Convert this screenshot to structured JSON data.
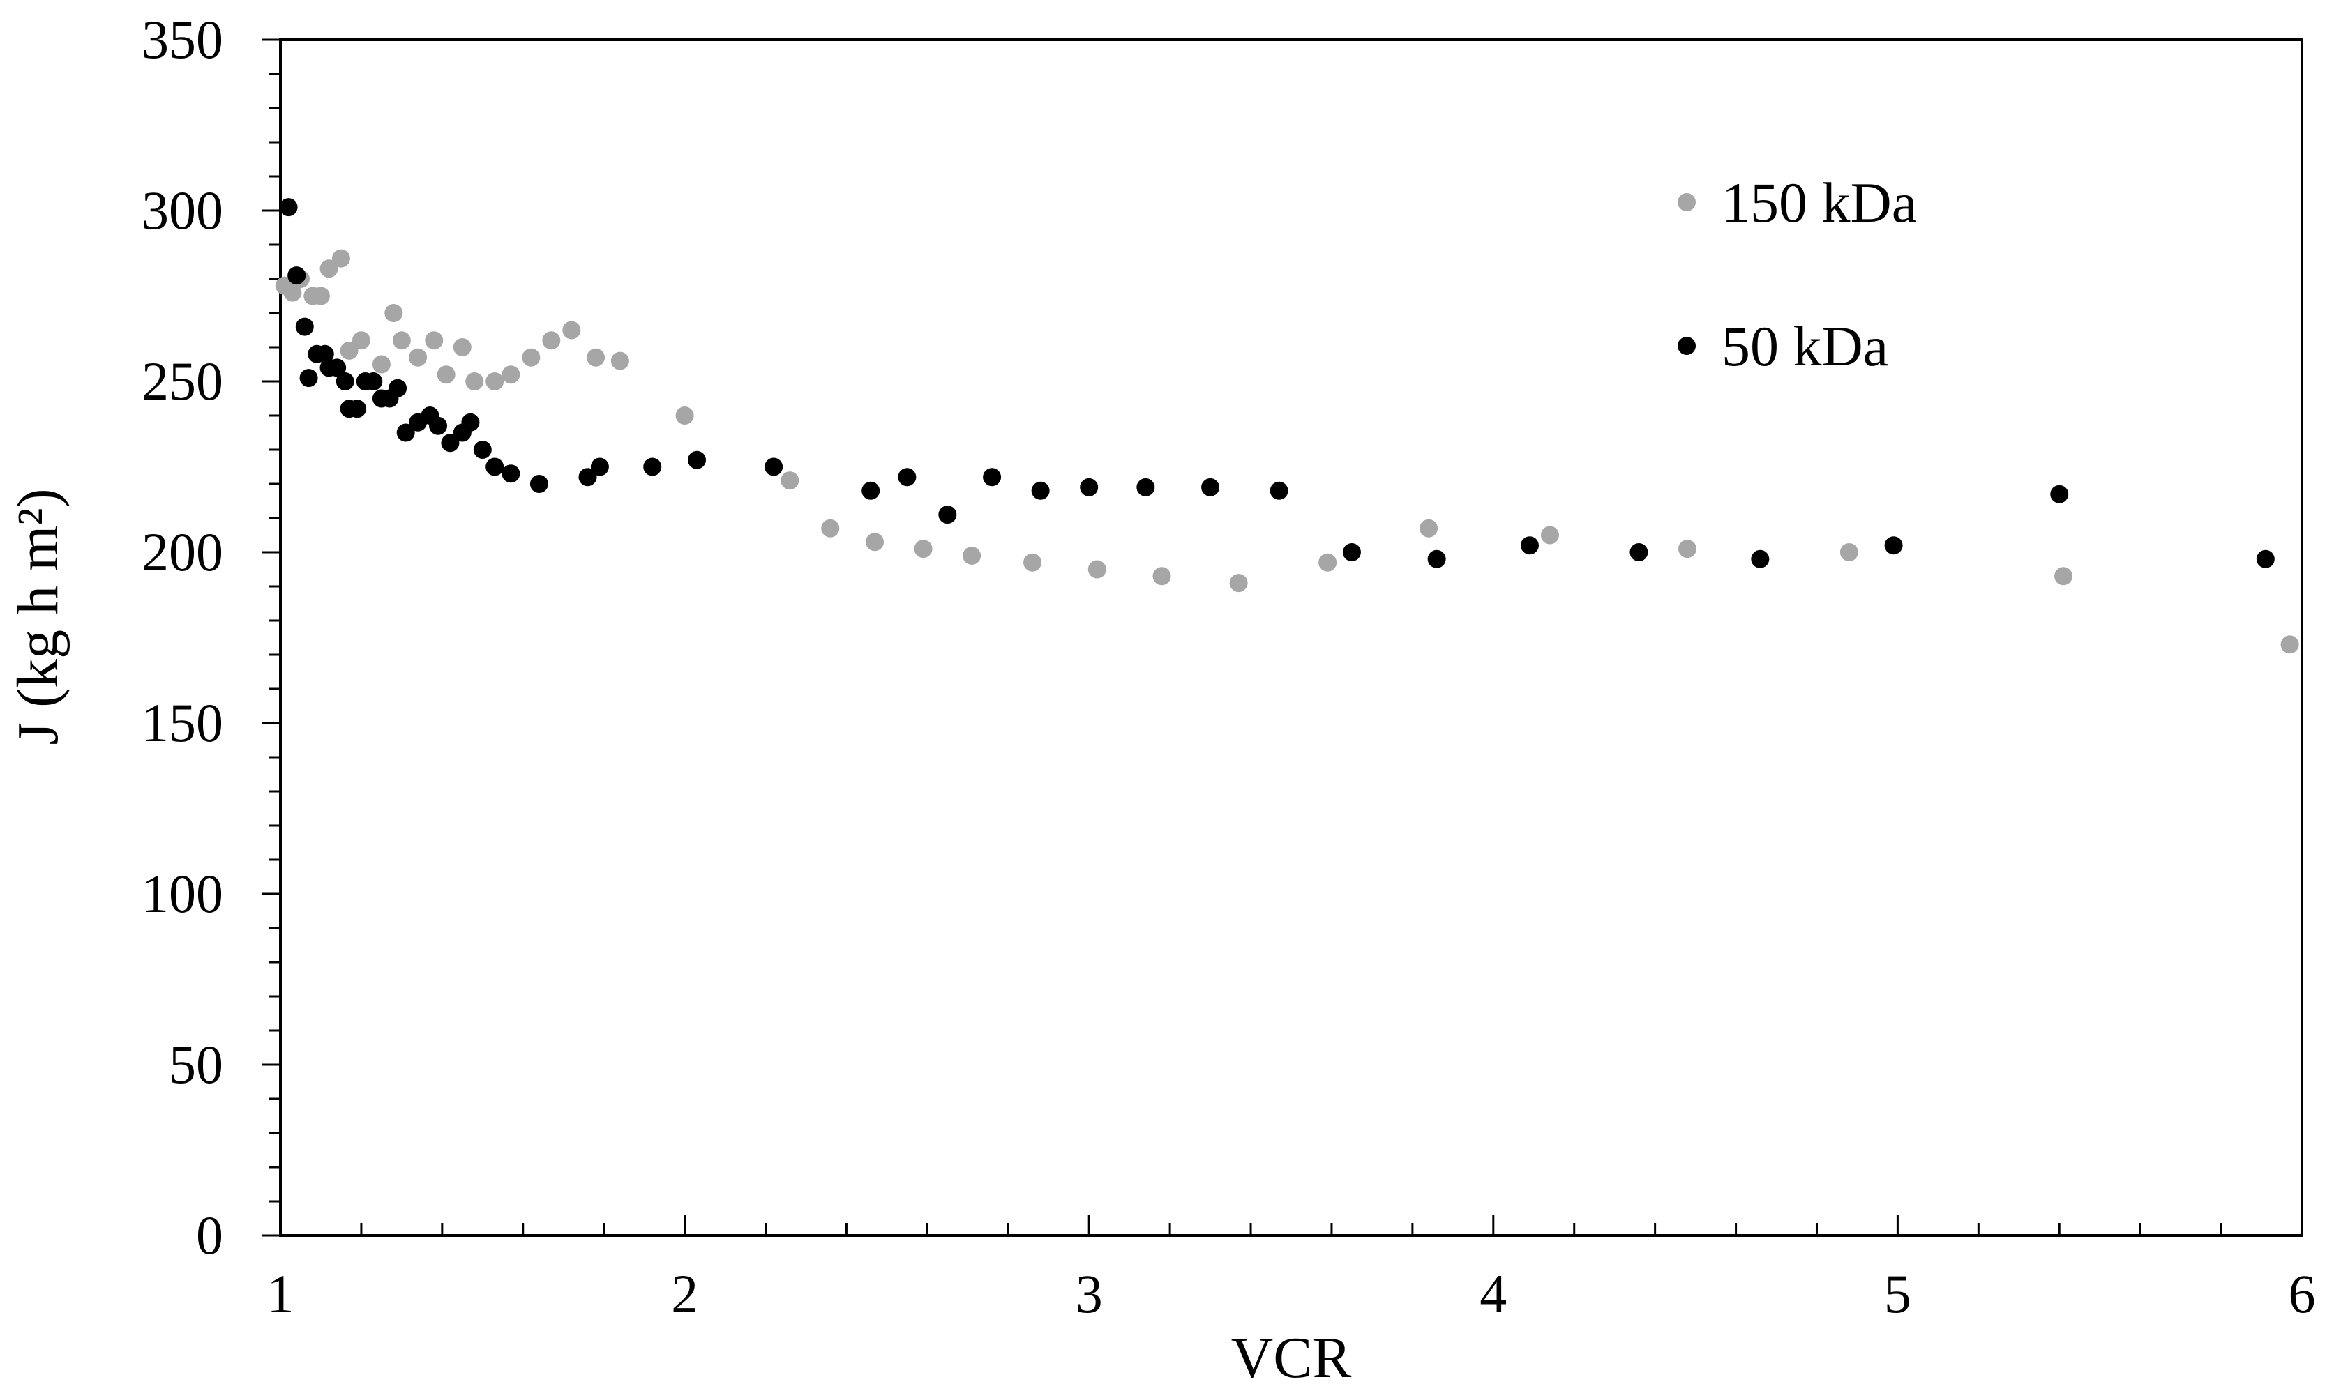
{
  "chart_data": {
    "type": "scatter",
    "title": "",
    "xlabel": "VCR",
    "ylabel": "J (kg h m²)",
    "xlim": [
      1,
      6
    ],
    "ylim": [
      0,
      350
    ],
    "x_ticks": [
      "1",
      "2",
      "3",
      "4",
      "5",
      "6"
    ],
    "y_ticks": [
      "0",
      "50",
      "100",
      "150",
      "200",
      "250",
      "300",
      "350"
    ],
    "grid": false,
    "legend_position": "top-right",
    "series": [
      {
        "name": "150 kDa",
        "color": "#a6a6a6",
        "points": [
          [
            1.01,
            278
          ],
          [
            1.03,
            276
          ],
          [
            1.05,
            280
          ],
          [
            1.08,
            275
          ],
          [
            1.1,
            275
          ],
          [
            1.12,
            283
          ],
          [
            1.15,
            286
          ],
          [
            1.17,
            259
          ],
          [
            1.2,
            262
          ],
          [
            1.25,
            255
          ],
          [
            1.28,
            270
          ],
          [
            1.3,
            262
          ],
          [
            1.34,
            257
          ],
          [
            1.38,
            262
          ],
          [
            1.41,
            252
          ],
          [
            1.45,
            260
          ],
          [
            1.48,
            250
          ],
          [
            1.53,
            250
          ],
          [
            1.57,
            252
          ],
          [
            1.62,
            257
          ],
          [
            1.67,
            262
          ],
          [
            1.72,
            265
          ],
          [
            1.78,
            257
          ],
          [
            1.84,
            256
          ],
          [
            2.0,
            240
          ],
          [
            2.26,
            221
          ],
          [
            2.36,
            207
          ],
          [
            2.47,
            203
          ],
          [
            2.59,
            201
          ],
          [
            2.71,
            199
          ],
          [
            2.86,
            197
          ],
          [
            3.02,
            195
          ],
          [
            3.18,
            193
          ],
          [
            3.37,
            191
          ],
          [
            3.59,
            197
          ],
          [
            3.84,
            207
          ],
          [
            4.14,
            205
          ],
          [
            4.48,
            201
          ],
          [
            4.88,
            200
          ],
          [
            5.41,
            193
          ],
          [
            5.97,
            173
          ]
        ]
      },
      {
        "name": "50 kDa",
        "color": "#000000",
        "points": [
          [
            1.02,
            301
          ],
          [
            1.04,
            281
          ],
          [
            1.06,
            266
          ],
          [
            1.07,
            251
          ],
          [
            1.09,
            258
          ],
          [
            1.11,
            258
          ],
          [
            1.12,
            254
          ],
          [
            1.14,
            254
          ],
          [
            1.16,
            250
          ],
          [
            1.17,
            242
          ],
          [
            1.19,
            242
          ],
          [
            1.21,
            250
          ],
          [
            1.23,
            250
          ],
          [
            1.25,
            245
          ],
          [
            1.27,
            245
          ],
          [
            1.29,
            248
          ],
          [
            1.31,
            235
          ],
          [
            1.34,
            238
          ],
          [
            1.37,
            240
          ],
          [
            1.39,
            237
          ],
          [
            1.42,
            232
          ],
          [
            1.45,
            235
          ],
          [
            1.47,
            238
          ],
          [
            1.5,
            230
          ],
          [
            1.53,
            225
          ],
          [
            1.57,
            223
          ],
          [
            1.64,
            220
          ],
          [
            1.76,
            222
          ],
          [
            1.79,
            225
          ],
          [
            1.92,
            225
          ],
          [
            2.03,
            227
          ],
          [
            2.22,
            225
          ],
          [
            2.46,
            218
          ],
          [
            2.55,
            222
          ],
          [
            2.65,
            211
          ],
          [
            2.76,
            222
          ],
          [
            2.88,
            218
          ],
          [
            3.0,
            219
          ],
          [
            3.14,
            219
          ],
          [
            3.3,
            219
          ],
          [
            3.47,
            218
          ],
          [
            3.65,
            200
          ],
          [
            3.86,
            198
          ],
          [
            4.09,
            202
          ],
          [
            4.36,
            200
          ],
          [
            4.66,
            198
          ],
          [
            4.99,
            202
          ],
          [
            5.4,
            217
          ],
          [
            5.91,
            198
          ]
        ]
      }
    ]
  }
}
